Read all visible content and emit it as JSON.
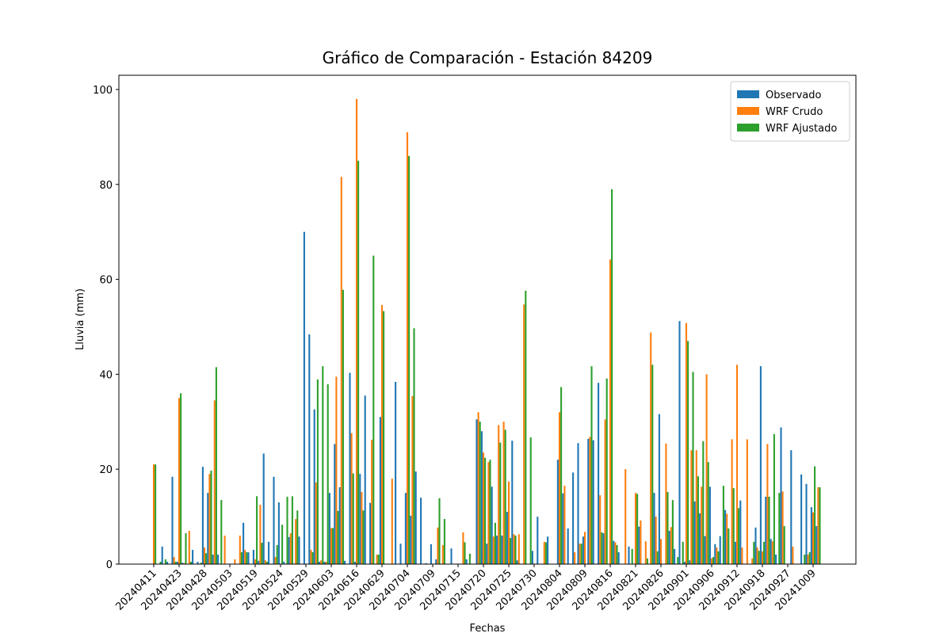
{
  "chart_data": {
    "type": "bar",
    "title": "Gráfico de Comparación - Estación 84209",
    "x_label": "Fechas",
    "y_label": "Lluvia (mm)",
    "categories": [
      "20240411",
      null,
      null,
      null,
      null,
      "20240423",
      null,
      null,
      null,
      null,
      "20240428",
      null,
      null,
      null,
      null,
      "20240503",
      null,
      null,
      null,
      null,
      "20240519",
      null,
      null,
      null,
      null,
      "20240524",
      null,
      null,
      null,
      null,
      "20240529",
      null,
      null,
      null,
      null,
      "20240603",
      null,
      null,
      null,
      null,
      "20240616",
      null,
      null,
      null,
      null,
      "20240629",
      null,
      null,
      null,
      null,
      "20240704",
      null,
      null,
      null,
      null,
      "20240709",
      null,
      null,
      null,
      null,
      "20240715",
      null,
      null,
      null,
      null,
      "20240720",
      null,
      null,
      null,
      null,
      "20240725",
      null,
      null,
      null,
      null,
      "20240730",
      null,
      null,
      null,
      null,
      "20240804",
      null,
      null,
      null,
      null,
      "20240809",
      null,
      null,
      null,
      null,
      "20240816",
      null,
      null,
      null,
      null,
      "20240821",
      null,
      null,
      null,
      null,
      "20240826",
      null,
      null,
      null,
      null,
      "20240901",
      null,
      null,
      null,
      null,
      "20240906",
      null,
      null,
      null,
      null,
      "20240912",
      null,
      null,
      null,
      null,
      "20240918",
      null,
      null,
      null,
      null,
      "20240927",
      null,
      null,
      null,
      null,
      "20241009",
      null
    ],
    "series": [
      {
        "name": "Observado",
        "color": "#1f77b4",
        "values": [
          0,
          0,
          3.7,
          0.5,
          18.4,
          0.5,
          0.3,
          0,
          3,
          0.5,
          20.5,
          15,
          2,
          2,
          0,
          0,
          0,
          0,
          8.7,
          2.5,
          3,
          0.7,
          23.3,
          4.7,
          18.4,
          13,
          0.5,
          5.7,
          0,
          5.8,
          70,
          48.4,
          32.6,
          0.5,
          0.5,
          15,
          25.3,
          16.2,
          0.7,
          40.3,
          0.5,
          19,
          35.5,
          12.9,
          0,
          31,
          0,
          0,
          38.4,
          4.3,
          15,
          10.2,
          19.5,
          14,
          0.2,
          4.2,
          1,
          0,
          0,
          3.3,
          0,
          0,
          1,
          0,
          30.5,
          28,
          4.3,
          16.3,
          6,
          6,
          11,
          26,
          0.8,
          0,
          0,
          2.8,
          10,
          0,
          5.8,
          0,
          22,
          14.9,
          7.5,
          19.3,
          25.5,
          5.8,
          26.4,
          26.1,
          38.2,
          6.5,
          0,
          4.9,
          2.5,
          0,
          3.7,
          0,
          7.9,
          0,
          0,
          15,
          31.6,
          0,
          7,
          3.2,
          51.2,
          0.5,
          0.8,
          13.2,
          10.7,
          5.9,
          16.3,
          4.2,
          5.9,
          11.4,
          0,
          4.7,
          13.4,
          0,
          0,
          7.7,
          41.7,
          14.2,
          5.3,
          2,
          28.8,
          0,
          24,
          0,
          18.9,
          16.9,
          12,
          8
        ]
      },
      {
        "name": "WRF Crudo",
        "color": "#ff7f0e",
        "values": [
          21,
          0,
          0,
          0,
          1.5,
          35,
          0.2,
          7,
          0,
          0,
          3.5,
          19,
          34.5,
          0,
          6,
          0,
          1,
          6,
          3,
          0,
          1,
          12.5,
          0.8,
          0,
          1.5,
          0,
          0,
          6.5,
          9.5,
          0,
          0,
          3,
          17.2,
          0.8,
          0.5,
          7.6,
          39.5,
          81.6,
          0,
          27.6,
          98,
          15.2,
          0,
          26.2,
          2,
          54.6,
          0,
          18,
          0,
          0,
          91,
          35.4,
          0,
          0,
          0,
          0,
          7.7,
          4,
          0,
          0,
          0,
          6.7,
          0,
          0,
          32,
          23.5,
          21.5,
          5.8,
          29.3,
          30,
          17.4,
          6.3,
          6.3,
          54.7,
          0,
          0,
          0,
          4.7,
          0,
          0,
          32,
          16.5,
          0,
          2.5,
          4.3,
          6.8,
          26.8,
          0,
          14.5,
          30.5,
          64.2,
          4.6,
          0,
          20,
          0,
          15,
          9.2,
          4.8,
          48.8,
          10,
          5.3,
          25.4,
          7.8,
          0,
          0,
          50.8,
          24,
          24,
          16.3,
          40,
          1.2,
          3.5,
          0,
          10.6,
          26.3,
          42,
          3.5,
          26.3,
          1.2,
          3.5,
          2.7,
          25.3,
          4.8,
          0,
          15.3,
          0,
          3.7,
          0,
          0,
          2,
          10.9,
          16.2
        ]
      },
      {
        "name": "WRF Ajustado",
        "color": "#2ca02c",
        "values": [
          21,
          0.5,
          1,
          0,
          0.5,
          36,
          6.5,
          0.5,
          0,
          0.3,
          2.3,
          19.7,
          41.5,
          13.5,
          0,
          0,
          0,
          2.5,
          2.5,
          0,
          14.3,
          4.5,
          0.5,
          0,
          4,
          8.3,
          14.2,
          14.3,
          11.3,
          0,
          0,
          2.5,
          38.9,
          41.7,
          37.9,
          7.6,
          11.2,
          57.8,
          0,
          19.1,
          85,
          11.3,
          0,
          65,
          2,
          53.3,
          0,
          0,
          0,
          0,
          86,
          49.7,
          0,
          0,
          0,
          0,
          13.9,
          9.5,
          0,
          0,
          0,
          4.6,
          2.2,
          0,
          30,
          22.4,
          22,
          8.7,
          25.6,
          28.3,
          5.5,
          6,
          0,
          57.6,
          26.7,
          0,
          0,
          4.6,
          0,
          0,
          37.3,
          0,
          0,
          0,
          4.3,
          0,
          41.7,
          0,
          6.7,
          39.1,
          79,
          4,
          0,
          0,
          3.2,
          14.8,
          0,
          1.2,
          42,
          2.7,
          0,
          15.2,
          13.5,
          1.5,
          4.7,
          47,
          40.5,
          18.5,
          25.9,
          21.5,
          1.5,
          2.7,
          16.5,
          7.5,
          16,
          11.8,
          0,
          0,
          4.7,
          2.8,
          4.7,
          14.2,
          27.4,
          15,
          8,
          0,
          0,
          0,
          2,
          2.5,
          20.6,
          16.2
        ]
      }
    ],
    "ylim": [
      0,
      103
    ],
    "yticks": [
      0,
      20,
      40,
      60,
      80,
      100
    ],
    "legend": "upper right"
  }
}
